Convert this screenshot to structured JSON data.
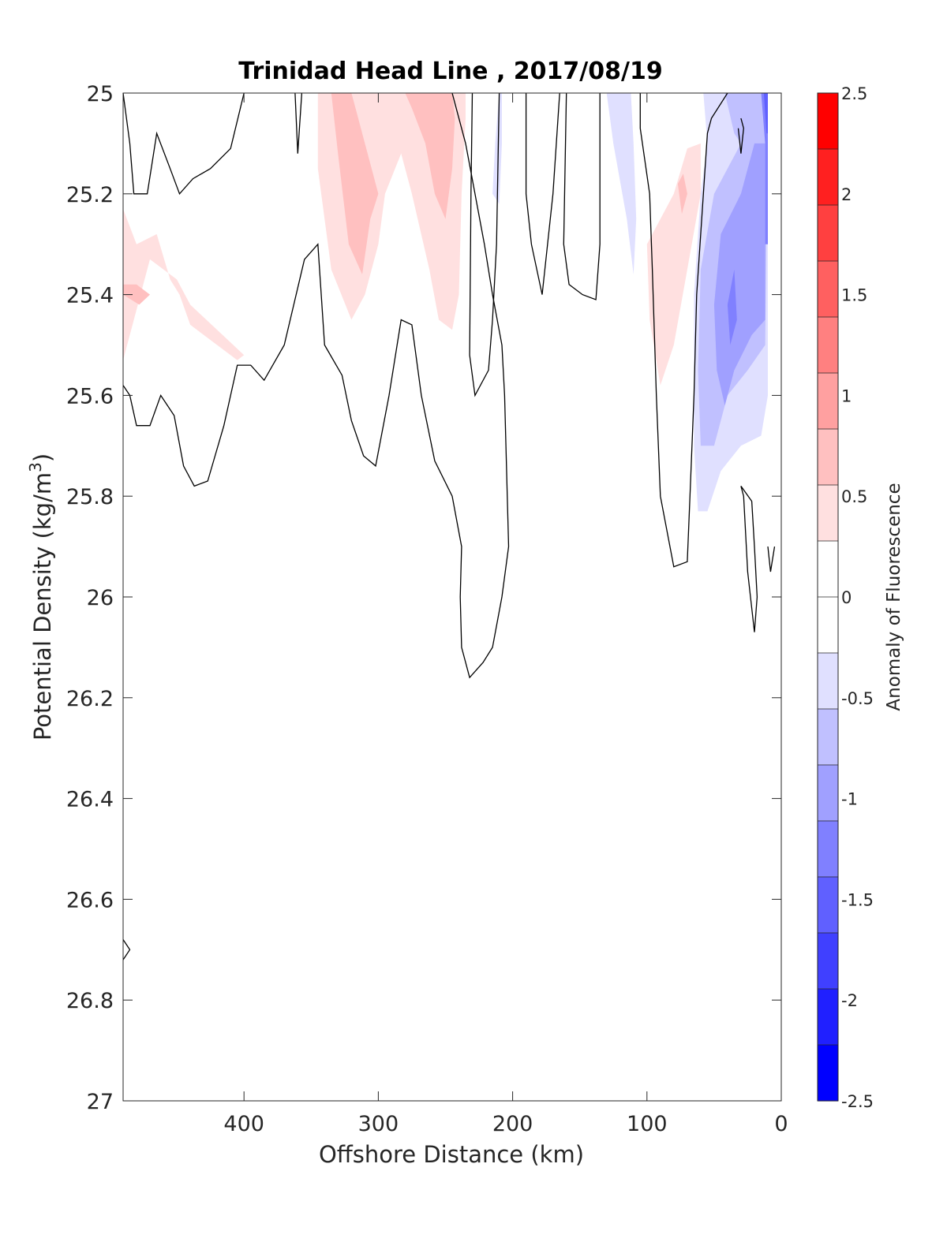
{
  "chart_data": {
    "type": "contour",
    "title": "Trinidad Head Line , 2017/08/19",
    "xlabel": "Offshore Distance (km)",
    "ylabel_main": "Potential Density (kg/m",
    "ylabel_sup": "3",
    "ylabel_close": ")",
    "x_reversed": true,
    "xlim": [
      0,
      490
    ],
    "ylim": [
      25,
      27
    ],
    "y_reversed": true,
    "x_ticks": [
      400,
      300,
      200,
      100,
      0
    ],
    "x_tick_labels": [
      "400",
      "300",
      "200",
      "100",
      "0"
    ],
    "y_ticks": [
      25,
      25.2,
      25.4,
      25.6,
      25.8,
      26,
      26.2,
      26.4,
      26.6,
      26.8,
      27
    ],
    "y_tick_labels": [
      "25",
      "25.2",
      "25.4",
      "25.6",
      "25.8",
      "26",
      "26.2",
      "26.4",
      "26.6",
      "26.8",
      "27"
    ],
    "grid": false,
    "colorbar": {
      "label": "Anomaly of Fluorescence",
      "limits": [
        -2.5,
        2.5
      ],
      "step": 0.25,
      "ticks": [
        2.5,
        2,
        1.5,
        1,
        0.5,
        0,
        -0.5,
        -1,
        -1.5,
        -2,
        -2.5
      ],
      "tick_labels": [
        "2.5",
        "2",
        "1.5",
        "1",
        "0.5",
        "0",
        "-0.5",
        "-1",
        "-1.5",
        "-2",
        "-2.5"
      ],
      "colors_top_to_bottom": [
        "#ff0000",
        "#ff2020",
        "#ff4040",
        "#ff6060",
        "#ff8080",
        "#ffa0a0",
        "#ffc0c0",
        "#ffe0e0",
        "#ffffff",
        "#ffffff",
        "#e0e0ff",
        "#c0c0ff",
        "#a0a0ff",
        "#8080ff",
        "#6060ff",
        "#4040ff",
        "#2020ff",
        "#0000ff"
      ]
    },
    "filled_regions": [
      {
        "level": 0.25,
        "color": "#ffe0e0",
        "points": [
          [
            490,
            25.23
          ],
          [
            480,
            25.3
          ],
          [
            465,
            25.28
          ],
          [
            455,
            25.37
          ],
          [
            448,
            25.4
          ],
          [
            440,
            25.46
          ],
          [
            420,
            25.5
          ],
          [
            405,
            25.53
          ],
          [
            400,
            25.52
          ],
          [
            420,
            25.47
          ],
          [
            440,
            25.42
          ],
          [
            450,
            25.37
          ],
          [
            470,
            25.33
          ],
          [
            490,
            25.53
          ]
        ]
      },
      {
        "level": 0.5,
        "color": "#ffc0c0",
        "points": [
          [
            490,
            25.38
          ],
          [
            480,
            25.38
          ],
          [
            470,
            25.4
          ],
          [
            478,
            25.42
          ],
          [
            490,
            25.4
          ]
        ]
      },
      {
        "level": 0.25,
        "color": "#ffe0e0",
        "points": [
          [
            345,
            25.0
          ],
          [
            345,
            25.15
          ],
          [
            335,
            25.35
          ],
          [
            320,
            25.45
          ],
          [
            310,
            25.4
          ],
          [
            300,
            25.3
          ],
          [
            295,
            25.2
          ],
          [
            280,
            25.1
          ],
          [
            270,
            25.05
          ],
          [
            258,
            25.02
          ],
          [
            262,
            25.0
          ]
        ]
      },
      {
        "level": 0.5,
        "color": "#ffc0c0",
        "points": [
          [
            335,
            25.0
          ],
          [
            330,
            25.12
          ],
          [
            322,
            25.3
          ],
          [
            312,
            25.36
          ],
          [
            306,
            25.25
          ],
          [
            300,
            25.2
          ],
          [
            310,
            25.1
          ],
          [
            318,
            25.02
          ],
          [
            320,
            25.0
          ]
        ]
      },
      {
        "level": 0.25,
        "color": "#ffe0e0",
        "points": [
          [
            290,
            25.0
          ],
          [
            285,
            25.1
          ],
          [
            275,
            25.2
          ],
          [
            262,
            25.35
          ],
          [
            255,
            25.45
          ],
          [
            245,
            25.47
          ],
          [
            240,
            25.4
          ],
          [
            238,
            25.2
          ],
          [
            235,
            25.05
          ],
          [
            235,
            25.0
          ]
        ]
      },
      {
        "level": 0.5,
        "color": "#ffc0c0",
        "points": [
          [
            280,
            25.0
          ],
          [
            275,
            25.03
          ],
          [
            265,
            25.1
          ],
          [
            258,
            25.2
          ],
          [
            250,
            25.25
          ],
          [
            245,
            25.15
          ],
          [
            243,
            25.05
          ],
          [
            245,
            25.0
          ]
        ]
      },
      {
        "level": 0.25,
        "color": "#ffe0e0",
        "points": [
          [
            80,
            25.2
          ],
          [
            100,
            25.3
          ],
          [
            98,
            25.45
          ],
          [
            90,
            25.58
          ],
          [
            80,
            25.5
          ],
          [
            70,
            25.35
          ],
          [
            60,
            25.2
          ],
          [
            60,
            25.1
          ],
          [
            70,
            25.11
          ]
        ]
      },
      {
        "level": 0.5,
        "color": "#ffc0c0",
        "points": [
          [
            77,
            25.18
          ],
          [
            74,
            25.24
          ],
          [
            70,
            25.2
          ],
          [
            73,
            25.16
          ]
        ]
      },
      {
        "level": -0.25,
        "color": "#e0e0ff",
        "points": [
          [
            130,
            25.0
          ],
          [
            125,
            25.1
          ],
          [
            115,
            25.25
          ],
          [
            110,
            25.36
          ],
          [
            108,
            25.25
          ],
          [
            110,
            25.1
          ],
          [
            112,
            25.0
          ]
        ]
      },
      {
        "level": -0.25,
        "color": "#e0e0ff",
        "points": [
          [
            210,
            25.0
          ],
          [
            213,
            25.1
          ],
          [
            215,
            25.2
          ],
          [
            210,
            25.22
          ],
          [
            208,
            25.1
          ],
          [
            208,
            25.0
          ]
        ]
      },
      {
        "level": -0.25,
        "color": "#e0e0ff",
        "points": [
          [
            58,
            25.0
          ],
          [
            55,
            25.1
          ],
          [
            60,
            25.2
          ],
          [
            65,
            25.4
          ],
          [
            65,
            25.7
          ],
          [
            62,
            25.83
          ],
          [
            55,
            25.83
          ],
          [
            45,
            25.75
          ],
          [
            30,
            25.7
          ],
          [
            15,
            25.68
          ],
          [
            10,
            25.6
          ],
          [
            10,
            25.0
          ]
        ]
      },
      {
        "level": -0.5,
        "color": "#c0c0ff",
        "points": [
          [
            42,
            25.0
          ],
          [
            35,
            25.08
          ],
          [
            30,
            25.1
          ],
          [
            40,
            25.15
          ],
          [
            50,
            25.2
          ],
          [
            60,
            25.35
          ],
          [
            62,
            25.55
          ],
          [
            60,
            25.7
          ],
          [
            50,
            25.7
          ],
          [
            40,
            25.6
          ],
          [
            25,
            25.55
          ],
          [
            12,
            25.5
          ],
          [
            10,
            25.0
          ]
        ]
      },
      {
        "level": -0.75,
        "color": "#a0a0ff",
        "points": [
          [
            20,
            25.1
          ],
          [
            30,
            25.2
          ],
          [
            45,
            25.28
          ],
          [
            50,
            25.42
          ],
          [
            48,
            25.55
          ],
          [
            42,
            25.62
          ],
          [
            35,
            25.55
          ],
          [
            22,
            25.48
          ],
          [
            12,
            25.45
          ],
          [
            12,
            25.1
          ]
        ]
      },
      {
        "level": -1.0,
        "color": "#8080ff",
        "points": [
          [
            35,
            25.35
          ],
          [
            40,
            25.42
          ],
          [
            38,
            25.5
          ],
          [
            33,
            25.45
          ]
        ]
      },
      {
        "level": -1.0,
        "color": "#8080ff",
        "points": [
          [
            15,
            25.0
          ],
          [
            12,
            25.1
          ],
          [
            12,
            25.3
          ],
          [
            10,
            25.3
          ],
          [
            10,
            25.0
          ]
        ]
      },
      {
        "level": -1.5,
        "color": "#6060ff",
        "points": [
          [
            13,
            25.0
          ],
          [
            11,
            25.08
          ],
          [
            10,
            25.08
          ],
          [
            10,
            25.0
          ]
        ]
      }
    ],
    "zero_contours": [
      [
        [
          490,
          25.0
        ],
        [
          485,
          25.1
        ],
        [
          482,
          25.2
        ],
        [
          472,
          25.2
        ],
        [
          465,
          25.08
        ],
        [
          455,
          25.15
        ],
        [
          448,
          25.2
        ],
        [
          438,
          25.17
        ],
        [
          425,
          25.15
        ],
        [
          410,
          25.11
        ],
        [
          400,
          25.0
        ]
      ],
      [
        [
          362,
          25.0
        ],
        [
          360,
          25.12
        ],
        [
          357,
          25.0
        ]
      ],
      [
        [
          490,
          25.58
        ],
        [
          485,
          25.6
        ],
        [
          480,
          25.66
        ],
        [
          470,
          25.66
        ],
        [
          462,
          25.6
        ],
        [
          452,
          25.64
        ],
        [
          445,
          25.74
        ],
        [
          437,
          25.78
        ],
        [
          427,
          25.77
        ],
        [
          415,
          25.66
        ],
        [
          405,
          25.54
        ],
        [
          395,
          25.54
        ],
        [
          385,
          25.57
        ],
        [
          370,
          25.5
        ],
        [
          355,
          25.33
        ],
        [
          345,
          25.3
        ],
        [
          340,
          25.5
        ],
        [
          327,
          25.56
        ],
        [
          320,
          25.65
        ],
        [
          311,
          25.72
        ],
        [
          302,
          25.74
        ],
        [
          292,
          25.6
        ],
        [
          283,
          25.45
        ],
        [
          275,
          25.46
        ],
        [
          268,
          25.6
        ],
        [
          258,
          25.73
        ],
        [
          245,
          25.8
        ],
        [
          238,
          25.9
        ],
        [
          239,
          26.0
        ],
        [
          238,
          26.1
        ],
        [
          232,
          26.16
        ],
        [
          222,
          26.13
        ],
        [
          215,
          26.1
        ],
        [
          208,
          26.0
        ],
        [
          203,
          25.9
        ],
        [
          204,
          25.8
        ],
        [
          205,
          25.7
        ],
        [
          206,
          25.6
        ],
        [
          208,
          25.5
        ],
        [
          215,
          25.4
        ],
        [
          221,
          25.3
        ],
        [
          228,
          25.2
        ],
        [
          235,
          25.1
        ],
        [
          245,
          25.0
        ]
      ],
      [
        [
          230,
          25.0
        ],
        [
          231,
          25.2
        ],
        [
          232,
          25.52
        ],
        [
          228,
          25.6
        ],
        [
          218,
          25.55
        ],
        [
          215,
          25.45
        ],
        [
          212,
          25.3
        ],
        [
          210,
          25.0
        ]
      ],
      [
        [
          190,
          25.0
        ],
        [
          190,
          25.2
        ],
        [
          186,
          25.3
        ],
        [
          178,
          25.4
        ],
        [
          170,
          25.2
        ],
        [
          165,
          25.0
        ]
      ],
      [
        [
          160,
          25.0
        ],
        [
          162,
          25.3
        ],
        [
          158,
          25.38
        ],
        [
          148,
          25.4
        ],
        [
          138,
          25.41
        ],
        [
          135,
          25.3
        ],
        [
          135,
          25.0
        ]
      ],
      [
        [
          105,
          25.0
        ],
        [
          105,
          25.07
        ],
        [
          98,
          25.2
        ],
        [
          96,
          25.35
        ],
        [
          93,
          25.6
        ],
        [
          90,
          25.8
        ],
        [
          80,
          25.94
        ],
        [
          70,
          25.93
        ],
        [
          68,
          25.8
        ],
        [
          65,
          25.6
        ],
        [
          63,
          25.4
        ],
        [
          58,
          25.2
        ],
        [
          55,
          25.08
        ],
        [
          52,
          25.05
        ],
        [
          40,
          25.0
        ]
      ],
      [
        [
          32,
          25.07
        ],
        [
          30,
          25.12
        ],
        [
          28,
          25.07
        ],
        [
          30,
          25.05
        ]
      ],
      [
        [
          22,
          25.81
        ],
        [
          20,
          25.9
        ],
        [
          18,
          26.0
        ],
        [
          20,
          26.07
        ],
        [
          25,
          25.95
        ],
        [
          28,
          25.8
        ],
        [
          30,
          25.78
        ],
        [
          22,
          25.81
        ]
      ],
      [
        [
          10,
          25.9
        ],
        [
          8,
          25.95
        ],
        [
          5,
          25.9
        ]
      ],
      [
        [
          490,
          26.68
        ],
        [
          485,
          26.7
        ],
        [
          490,
          26.72
        ]
      ]
    ]
  }
}
